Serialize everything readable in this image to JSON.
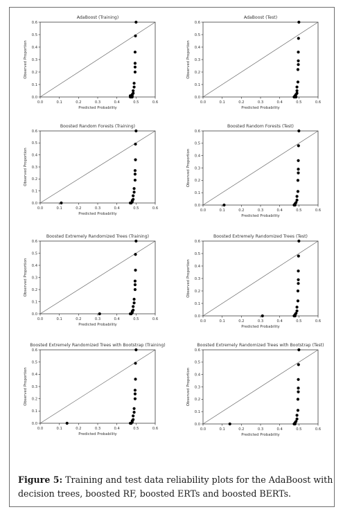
{
  "figure": {
    "caption_label": "Figure 5:",
    "caption_text": "Training and test data reliability plots for the AdaBoost with decision trees, boosted RF, boosted ERTs and boosted BERTs."
  },
  "chart_data": [
    {
      "type": "scatter",
      "title": "AdaBoost (Training)",
      "xlabel": "Predicted Probability",
      "ylabel": "Observed Proportion",
      "xlim": [
        0.0,
        0.6
      ],
      "ylim": [
        0.0,
        0.6
      ],
      "xticks": [
        "0.0",
        "0.1",
        "0.2",
        "0.3",
        "0.4",
        "0.5",
        "0.6"
      ],
      "yticks": [
        "0.0",
        "0.1",
        "0.2",
        "0.3",
        "0.4",
        "0.5",
        "0.6"
      ],
      "diagonal": true,
      "grid": false,
      "points": [
        {
          "x": 0.47,
          "y": 0.0
        },
        {
          "x": 0.47,
          "y": 0.01
        },
        {
          "x": 0.475,
          "y": 0.0
        },
        {
          "x": 0.48,
          "y": 0.0
        },
        {
          "x": 0.48,
          "y": 0.01
        },
        {
          "x": 0.48,
          "y": 0.02
        },
        {
          "x": 0.485,
          "y": 0.03
        },
        {
          "x": 0.485,
          "y": 0.05
        },
        {
          "x": 0.49,
          "y": 0.08
        },
        {
          "x": 0.49,
          "y": 0.11
        },
        {
          "x": 0.495,
          "y": 0.2
        },
        {
          "x": 0.495,
          "y": 0.24
        },
        {
          "x": 0.495,
          "y": 0.27
        },
        {
          "x": 0.495,
          "y": 0.36
        },
        {
          "x": 0.497,
          "y": 0.49
        },
        {
          "x": 0.5,
          "y": 0.6
        }
      ]
    },
    {
      "type": "scatter",
      "title": "AdaBoost (Test)",
      "xlabel": "Predicted Probability",
      "ylabel": "Observed Proportion",
      "xlim": [
        0.0,
        0.6
      ],
      "ylim": [
        0.0,
        0.6
      ],
      "xticks": [
        "0.0",
        "0.1",
        "0.2",
        "0.3",
        "0.4",
        "0.5",
        "0.6"
      ],
      "yticks": [
        "0.0",
        "0.1",
        "0.2",
        "0.3",
        "0.4",
        "0.5",
        "0.6"
      ],
      "diagonal": true,
      "grid": false,
      "points": [
        {
          "x": 0.475,
          "y": 0.0
        },
        {
          "x": 0.48,
          "y": 0.0
        },
        {
          "x": 0.48,
          "y": 0.01
        },
        {
          "x": 0.485,
          "y": 0.0
        },
        {
          "x": 0.485,
          "y": 0.02
        },
        {
          "x": 0.49,
          "y": 0.03
        },
        {
          "x": 0.49,
          "y": 0.05
        },
        {
          "x": 0.49,
          "y": 0.08
        },
        {
          "x": 0.495,
          "y": 0.12
        },
        {
          "x": 0.495,
          "y": 0.22
        },
        {
          "x": 0.497,
          "y": 0.26
        },
        {
          "x": 0.497,
          "y": 0.29
        },
        {
          "x": 0.497,
          "y": 0.36
        },
        {
          "x": 0.498,
          "y": 0.47
        },
        {
          "x": 0.5,
          "y": 0.6
        }
      ]
    },
    {
      "type": "scatter",
      "title": "Boosted Random Forests (Training)",
      "xlabel": "Predicted Probability",
      "ylabel": "Observed Proportion",
      "xlim": [
        0.0,
        0.6
      ],
      "ylim": [
        0.0,
        0.6
      ],
      "xticks": [
        "0.0",
        "0.1",
        "0.2",
        "0.3",
        "0.4",
        "0.5",
        "0.6"
      ],
      "yticks": [
        "0.0",
        "0.1",
        "0.2",
        "0.3",
        "0.4",
        "0.5",
        "0.6"
      ],
      "diagonal": true,
      "grid": false,
      "points": [
        {
          "x": 0.11,
          "y": 0.0
        },
        {
          "x": 0.47,
          "y": 0.0
        },
        {
          "x": 0.475,
          "y": 0.0
        },
        {
          "x": 0.48,
          "y": 0.01
        },
        {
          "x": 0.48,
          "y": 0.02
        },
        {
          "x": 0.485,
          "y": 0.03
        },
        {
          "x": 0.485,
          "y": 0.06
        },
        {
          "x": 0.49,
          "y": 0.09
        },
        {
          "x": 0.49,
          "y": 0.12
        },
        {
          "x": 0.495,
          "y": 0.19
        },
        {
          "x": 0.495,
          "y": 0.24
        },
        {
          "x": 0.495,
          "y": 0.27
        },
        {
          "x": 0.497,
          "y": 0.36
        },
        {
          "x": 0.497,
          "y": 0.49
        },
        {
          "x": 0.5,
          "y": 0.6
        }
      ]
    },
    {
      "type": "scatter",
      "title": "Boosted Random Forests (Test)",
      "xlabel": "Predicted Probability",
      "ylabel": "Observed Proportion",
      "xlim": [
        0.0,
        0.6
      ],
      "ylim": [
        0.0,
        0.6
      ],
      "xticks": [
        "0.0",
        "0.1",
        "0.2",
        "0.3",
        "0.4",
        "0.5",
        "0.6"
      ],
      "yticks": [
        "0.0",
        "0.1",
        "0.2",
        "0.3",
        "0.4",
        "0.5",
        "0.6"
      ],
      "diagonal": true,
      "grid": false,
      "points": [
        {
          "x": 0.11,
          "y": 0.0
        },
        {
          "x": 0.475,
          "y": 0.0
        },
        {
          "x": 0.48,
          "y": 0.0
        },
        {
          "x": 0.48,
          "y": 0.01
        },
        {
          "x": 0.485,
          "y": 0.02
        },
        {
          "x": 0.49,
          "y": 0.04
        },
        {
          "x": 0.49,
          "y": 0.07
        },
        {
          "x": 0.495,
          "y": 0.11
        },
        {
          "x": 0.495,
          "y": 0.2
        },
        {
          "x": 0.497,
          "y": 0.26
        },
        {
          "x": 0.497,
          "y": 0.29
        },
        {
          "x": 0.497,
          "y": 0.36
        },
        {
          "x": 0.498,
          "y": 0.48
        },
        {
          "x": 0.5,
          "y": 0.6
        }
      ]
    },
    {
      "type": "scatter",
      "title": "Boosted Extremely Randomized Trees (Training)",
      "xlabel": "Predicted Probability",
      "ylabel": "Observed Proportion",
      "xlim": [
        0.0,
        0.6
      ],
      "ylim": [
        0.0,
        0.6
      ],
      "xticks": [
        "0.0",
        "0.1",
        "0.2",
        "0.3",
        "0.4",
        "0.5",
        "0.6"
      ],
      "yticks": [
        "0.0",
        "0.1",
        "0.2",
        "0.3",
        "0.4",
        "0.5",
        "0.6"
      ],
      "diagonal": true,
      "grid": false,
      "points": [
        {
          "x": 0.31,
          "y": 0.0
        },
        {
          "x": 0.47,
          "y": 0.0
        },
        {
          "x": 0.475,
          "y": 0.0
        },
        {
          "x": 0.48,
          "y": 0.01
        },
        {
          "x": 0.48,
          "y": 0.02
        },
        {
          "x": 0.485,
          "y": 0.03
        },
        {
          "x": 0.485,
          "y": 0.06
        },
        {
          "x": 0.49,
          "y": 0.09
        },
        {
          "x": 0.49,
          "y": 0.12
        },
        {
          "x": 0.495,
          "y": 0.2
        },
        {
          "x": 0.495,
          "y": 0.24
        },
        {
          "x": 0.495,
          "y": 0.27
        },
        {
          "x": 0.497,
          "y": 0.36
        },
        {
          "x": 0.497,
          "y": 0.49
        },
        {
          "x": 0.5,
          "y": 0.6
        }
      ]
    },
    {
      "type": "scatter",
      "title": "Boosted Extremely Randomized Trees (Test)",
      "xlabel": "Predicted Probability",
      "ylabel": "Observed Proportion",
      "xlim": [
        0.0,
        0.6
      ],
      "ylim": [
        0.0,
        0.6
      ],
      "xticks": [
        "0.0",
        "0.1",
        "0.2",
        "0.3",
        "0.4",
        "0.5",
        "0.6"
      ],
      "yticks": [
        "0.0",
        "0.1",
        "0.2",
        "0.3",
        "0.4",
        "0.5",
        "0.6"
      ],
      "diagonal": true,
      "grid": false,
      "points": [
        {
          "x": 0.31,
          "y": 0.0
        },
        {
          "x": 0.475,
          "y": 0.0
        },
        {
          "x": 0.48,
          "y": 0.0
        },
        {
          "x": 0.48,
          "y": 0.01
        },
        {
          "x": 0.485,
          "y": 0.02
        },
        {
          "x": 0.49,
          "y": 0.04
        },
        {
          "x": 0.49,
          "y": 0.07
        },
        {
          "x": 0.495,
          "y": 0.12
        },
        {
          "x": 0.495,
          "y": 0.2
        },
        {
          "x": 0.497,
          "y": 0.26
        },
        {
          "x": 0.497,
          "y": 0.29
        },
        {
          "x": 0.497,
          "y": 0.36
        },
        {
          "x": 0.498,
          "y": 0.48
        },
        {
          "x": 0.5,
          "y": 0.6
        }
      ]
    },
    {
      "type": "scatter",
      "title": "Boosted Extremely Randomized Trees with Bootstrap (Training)",
      "xlabel": "Predicted Probability",
      "ylabel": "Observed Proportion",
      "xlim": [
        0.0,
        0.6
      ],
      "ylim": [
        0.0,
        0.6
      ],
      "xticks": [
        "0.0",
        "0.1",
        "0.2",
        "0.3",
        "0.4",
        "0.5",
        "0.6"
      ],
      "yticks": [
        "0.0",
        "0.1",
        "0.2",
        "0.3",
        "0.4",
        "0.5",
        "0.6"
      ],
      "diagonal": true,
      "grid": false,
      "points": [
        {
          "x": 0.14,
          "y": 0.0
        },
        {
          "x": 0.47,
          "y": 0.0
        },
        {
          "x": 0.475,
          "y": 0.0
        },
        {
          "x": 0.48,
          "y": 0.01
        },
        {
          "x": 0.48,
          "y": 0.02
        },
        {
          "x": 0.485,
          "y": 0.03
        },
        {
          "x": 0.485,
          "y": 0.06
        },
        {
          "x": 0.49,
          "y": 0.09
        },
        {
          "x": 0.49,
          "y": 0.12
        },
        {
          "x": 0.495,
          "y": 0.2
        },
        {
          "x": 0.495,
          "y": 0.24
        },
        {
          "x": 0.495,
          "y": 0.27
        },
        {
          "x": 0.497,
          "y": 0.36
        },
        {
          "x": 0.497,
          "y": 0.49
        },
        {
          "x": 0.5,
          "y": 0.6
        }
      ]
    },
    {
      "type": "scatter",
      "title": "Boosted Extremely Randomized Trees with Bootstrap (Test)",
      "xlabel": "Predicted Probability",
      "ylabel": "Observed Proportion",
      "xlim": [
        0.0,
        0.6
      ],
      "ylim": [
        0.0,
        0.6
      ],
      "xticks": [
        "0.0",
        "0.1",
        "0.2",
        "0.3",
        "0.4",
        "0.5",
        "0.6"
      ],
      "yticks": [
        "0.0",
        "0.1",
        "0.2",
        "0.3",
        "0.4",
        "0.5",
        "0.6"
      ],
      "diagonal": true,
      "grid": false,
      "points": [
        {
          "x": 0.14,
          "y": 0.0
        },
        {
          "x": 0.475,
          "y": 0.0
        },
        {
          "x": 0.48,
          "y": 0.0
        },
        {
          "x": 0.48,
          "y": 0.01
        },
        {
          "x": 0.485,
          "y": 0.02
        },
        {
          "x": 0.49,
          "y": 0.04
        },
        {
          "x": 0.49,
          "y": 0.07
        },
        {
          "x": 0.495,
          "y": 0.11
        },
        {
          "x": 0.495,
          "y": 0.2
        },
        {
          "x": 0.497,
          "y": 0.26
        },
        {
          "x": 0.497,
          "y": 0.29
        },
        {
          "x": 0.497,
          "y": 0.36
        },
        {
          "x": 0.498,
          "y": 0.48
        },
        {
          "x": 0.5,
          "y": 0.6
        }
      ]
    }
  ]
}
